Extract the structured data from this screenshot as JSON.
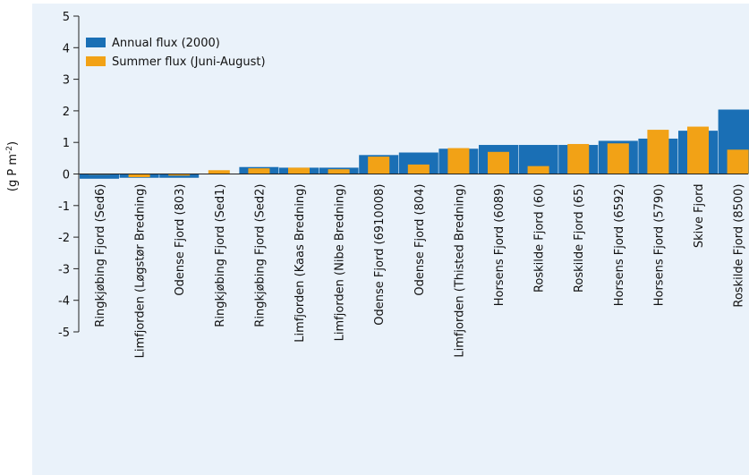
{
  "colors": {
    "annual": "#1a6fb5",
    "summer": "#f2a216",
    "axis": "#222222",
    "panel_bg": "#eaf2fa"
  },
  "chart_data": {
    "type": "bar",
    "title": "",
    "xlabel": "",
    "ylabel_main": "(g P m",
    "ylabel_sup": "-2",
    "ylabel_close": ")",
    "ylim": [
      -5,
      5
    ],
    "yticks": [
      5,
      4,
      3,
      2,
      1,
      0,
      -1,
      -2,
      -3,
      -4,
      -5
    ],
    "legend_position": "top-left",
    "categories": [
      "Ringkjøbing Fjord (Sed6)",
      "Limfjorden (Løgstør Bredning)",
      "Odense Fjord (803)",
      "Ringkjøbing Fjord (Sed1)",
      "Ringkjøbing Fjord (Sed2)",
      "Limfjorden (Kaas Bredning)",
      "Limfjorden (Nibe Bredning)",
      "Odense Fjord (6910008)",
      "Odense Fjord (804)",
      "Limfjorden (Thisted Bredning)",
      "Horsens Fjord (6089)",
      "Roskilde Fjord (60)",
      "Roskilde Fjord (65)",
      "Horsens Fjord (6592)",
      "Horsens Fjord (5790)",
      "Skive Fjord",
      "Roskilde Fjord (8500)"
    ],
    "series": [
      {
        "name": "Annual flux (2000)",
        "values": [
          -0.15,
          -0.12,
          -0.12,
          0.0,
          0.22,
          0.2,
          0.2,
          0.6,
          0.68,
          0.8,
          0.92,
          0.92,
          0.92,
          1.05,
          1.12,
          1.37,
          2.04
        ]
      },
      {
        "name": "Summer flux (Juni-August)",
        "values": [
          -0.02,
          -0.1,
          -0.05,
          0.12,
          0.18,
          0.2,
          0.15,
          0.55,
          0.3,
          0.82,
          0.7,
          0.25,
          0.95,
          0.97,
          1.4,
          1.5,
          0.77
        ]
      }
    ]
  }
}
